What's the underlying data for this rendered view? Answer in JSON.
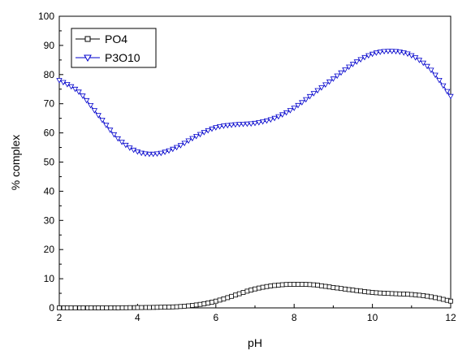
{
  "chart_data": {
    "type": "line",
    "xlabel": "pH",
    "ylabel": "% complex",
    "xlim": [
      2,
      12
    ],
    "ylim": [
      0,
      100
    ],
    "xticks": [
      2,
      4,
      6,
      8,
      10,
      12
    ],
    "yticks": [
      0,
      10,
      20,
      30,
      40,
      50,
      60,
      70,
      80,
      90,
      100
    ],
    "grid": false,
    "legend_position": "top-left",
    "series": [
      {
        "name": "PO4",
        "marker": "square",
        "color": "#000000",
        "x": [
          2.0,
          3.0,
          4.0,
          4.5,
          5.0,
          5.5,
          6.0,
          6.5,
          7.0,
          7.5,
          8.0,
          8.5,
          9.0,
          9.5,
          10.0,
          10.5,
          11.0,
          11.5,
          12.0
        ],
        "y": [
          0.0,
          0.0,
          0.1,
          0.2,
          0.4,
          1.0,
          2.3,
          4.4,
          6.5,
          7.7,
          8.1,
          7.9,
          7.0,
          6.1,
          5.3,
          4.9,
          4.6,
          3.8,
          2.3
        ]
      },
      {
        "name": "P3O10",
        "marker": "triangle-down",
        "color": "#0000cc",
        "x": [
          2.0,
          2.5,
          3.0,
          3.5,
          4.0,
          4.5,
          5.0,
          5.5,
          6.0,
          6.5,
          7.0,
          7.5,
          8.0,
          8.5,
          9.0,
          9.5,
          10.0,
          10.5,
          11.0,
          11.5,
          12.0
        ],
        "y": [
          78.0,
          74.0,
          66.0,
          58.0,
          53.5,
          52.8,
          55.0,
          58.8,
          61.8,
          62.8,
          63.3,
          65.0,
          68.5,
          73.5,
          78.5,
          83.5,
          87.0,
          88.0,
          86.5,
          81.5,
          72.5
        ]
      }
    ]
  }
}
